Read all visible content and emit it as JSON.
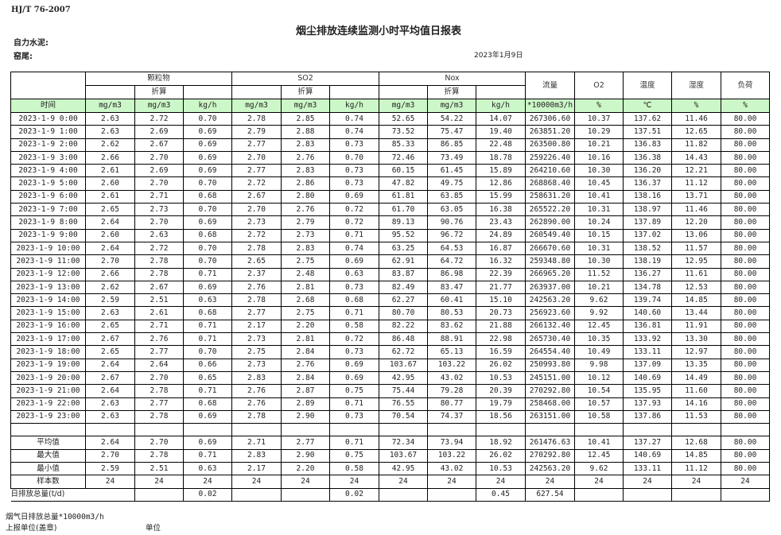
{
  "header": {
    "standard": "HJ/T  76-2007",
    "title": "烟尘排放连续监测小时平均值日报表",
    "company": "自力水泥:",
    "kiln": "窑尾:",
    "date": "2023年1月9日"
  },
  "groups": {
    "particulate": "颗粒物",
    "so2": "SO2",
    "nox": "Nox",
    "converted": "折算",
    "flow": "流量",
    "o2": "O2",
    "temperature": "温度",
    "humidity": "湿度",
    "load": "负荷"
  },
  "units": [
    "时间",
    "mg/m3",
    "mg/m3",
    "kg/h",
    "mg/m3",
    "mg/m3",
    "kg/h",
    "mg/m3",
    "mg/m3",
    "kg/h",
    "*10000m3/h",
    "%",
    "℃",
    "%",
    "%"
  ],
  "rows": [
    [
      "2023-1-9 0:00",
      "2.63",
      "2.72",
      "0.70",
      "2.78",
      "2.85",
      "0.74",
      "52.65",
      "54.22",
      "14.07",
      "267306.60",
      "10.37",
      "137.62",
      "11.46",
      "80.00"
    ],
    [
      "2023-1-9 1:00",
      "2.63",
      "2.69",
      "0.69",
      "2.79",
      "2.88",
      "0.74",
      "73.52",
      "75.47",
      "19.40",
      "263851.20",
      "10.29",
      "137.51",
      "12.65",
      "80.00"
    ],
    [
      "2023-1-9 2:00",
      "2.62",
      "2.67",
      "0.69",
      "2.77",
      "2.83",
      "0.73",
      "85.33",
      "86.85",
      "22.48",
      "263500.80",
      "10.21",
      "136.83",
      "11.82",
      "80.00"
    ],
    [
      "2023-1-9 3:00",
      "2.66",
      "2.70",
      "0.69",
      "2.70",
      "2.76",
      "0.70",
      "72.46",
      "73.49",
      "18.78",
      "259226.40",
      "10.16",
      "136.38",
      "14.43",
      "80.00"
    ],
    [
      "2023-1-9 4:00",
      "2.61",
      "2.69",
      "0.69",
      "2.77",
      "2.83",
      "0.73",
      "60.15",
      "61.45",
      "15.89",
      "264210.60",
      "10.30",
      "136.20",
      "12.21",
      "80.00"
    ],
    [
      "2023-1-9 5:00",
      "2.60",
      "2.70",
      "0.70",
      "2.72",
      "2.86",
      "0.73",
      "47.82",
      "49.75",
      "12.86",
      "268868.40",
      "10.45",
      "136.37",
      "11.12",
      "80.00"
    ],
    [
      "2023-1-9 6:00",
      "2.61",
      "2.71",
      "0.68",
      "2.67",
      "2.80",
      "0.69",
      "61.81",
      "63.85",
      "15.99",
      "258631.20",
      "10.41",
      "138.16",
      "13.71",
      "80.00"
    ],
    [
      "2023-1-9 7:00",
      "2.65",
      "2.73",
      "0.70",
      "2.70",
      "2.76",
      "0.72",
      "61.70",
      "63.05",
      "16.38",
      "265522.20",
      "10.31",
      "138.97",
      "11.46",
      "80.00"
    ],
    [
      "2023-1-9 8:00",
      "2.64",
      "2.70",
      "0.69",
      "2.73",
      "2.79",
      "0.72",
      "89.13",
      "90.76",
      "23.43",
      "262890.00",
      "10.24",
      "137.89",
      "12.20",
      "80.00"
    ],
    [
      "2023-1-9 9:00",
      "2.60",
      "2.63",
      "0.68",
      "2.72",
      "2.73",
      "0.71",
      "95.52",
      "96.72",
      "24.89",
      "260549.40",
      "10.15",
      "137.02",
      "13.06",
      "80.00"
    ],
    [
      "2023-1-9 10:00",
      "2.64",
      "2.72",
      "0.70",
      "2.78",
      "2.83",
      "0.74",
      "63.25",
      "64.53",
      "16.87",
      "266670.60",
      "10.31",
      "138.52",
      "11.57",
      "80.00"
    ],
    [
      "2023-1-9 11:00",
      "2.70",
      "2.78",
      "0.70",
      "2.65",
      "2.75",
      "0.69",
      "62.91",
      "64.72",
      "16.32",
      "259348.80",
      "10.30",
      "138.19",
      "12.95",
      "80.00"
    ],
    [
      "2023-1-9 12:00",
      "2.66",
      "2.78",
      "0.71",
      "2.37",
      "2.48",
      "0.63",
      "83.87",
      "86.98",
      "22.39",
      "266965.20",
      "11.52",
      "136.27",
      "11.61",
      "80.00"
    ],
    [
      "2023-1-9 13:00",
      "2.62",
      "2.67",
      "0.69",
      "2.76",
      "2.81",
      "0.73",
      "82.49",
      "83.47",
      "21.77",
      "263937.00",
      "10.21",
      "134.78",
      "12.53",
      "80.00"
    ],
    [
      "2023-1-9 14:00",
      "2.59",
      "2.51",
      "0.63",
      "2.78",
      "2.68",
      "0.68",
      "62.27",
      "60.41",
      "15.10",
      "242563.20",
      "9.62",
      "139.74",
      "14.85",
      "80.00"
    ],
    [
      "2023-1-9 15:00",
      "2.63",
      "2.61",
      "0.68",
      "2.77",
      "2.75",
      "0.71",
      "80.70",
      "80.53",
      "20.73",
      "256923.60",
      "9.92",
      "140.60",
      "13.44",
      "80.00"
    ],
    [
      "2023-1-9 16:00",
      "2.65",
      "2.71",
      "0.71",
      "2.17",
      "2.20",
      "0.58",
      "82.22",
      "83.62",
      "21.88",
      "266132.40",
      "12.45",
      "136.81",
      "11.91",
      "80.00"
    ],
    [
      "2023-1-9 17:00",
      "2.67",
      "2.76",
      "0.71",
      "2.73",
      "2.81",
      "0.72",
      "86.48",
      "88.91",
      "22.98",
      "265730.40",
      "10.35",
      "133.92",
      "13.30",
      "80.00"
    ],
    [
      "2023-1-9 18:00",
      "2.65",
      "2.77",
      "0.70",
      "2.75",
      "2.84",
      "0.73",
      "62.72",
      "65.13",
      "16.59",
      "264554.40",
      "10.49",
      "133.11",
      "12.97",
      "80.00"
    ],
    [
      "2023-1-9 19:00",
      "2.64",
      "2.64",
      "0.66",
      "2.73",
      "2.76",
      "0.69",
      "103.67",
      "103.22",
      "26.02",
      "250993.80",
      "9.98",
      "137.09",
      "13.35",
      "80.00"
    ],
    [
      "2023-1-9 20:00",
      "2.67",
      "2.70",
      "0.65",
      "2.83",
      "2.84",
      "0.69",
      "42.95",
      "43.02",
      "10.53",
      "245151.00",
      "10.12",
      "140.69",
      "14.49",
      "80.00"
    ],
    [
      "2023-1-9 21:00",
      "2.64",
      "2.78",
      "0.71",
      "2.76",
      "2.87",
      "0.75",
      "75.44",
      "79.28",
      "20.39",
      "270292.80",
      "10.54",
      "135.95",
      "11.60",
      "80.00"
    ],
    [
      "2023-1-9 22:00",
      "2.63",
      "2.77",
      "0.68",
      "2.76",
      "2.89",
      "0.71",
      "76.55",
      "80.77",
      "19.79",
      "258468.00",
      "10.57",
      "137.93",
      "14.16",
      "80.00"
    ],
    [
      "2023-1-9 23:00",
      "2.63",
      "2.78",
      "0.69",
      "2.78",
      "2.90",
      "0.73",
      "70.54",
      "74.37",
      "18.56",
      "263151.00",
      "10.58",
      "137.86",
      "11.53",
      "80.00"
    ]
  ],
  "summary": [
    [
      "平均值",
      "2.64",
      "2.70",
      "0.69",
      "2.71",
      "2.77",
      "0.71",
      "72.34",
      "73.94",
      "18.92",
      "261476.63",
      "10.41",
      "137.27",
      "12.68",
      "80.00"
    ],
    [
      "最大值",
      "2.70",
      "2.78",
      "0.71",
      "2.83",
      "2.90",
      "0.75",
      "103.67",
      "103.22",
      "26.02",
      "270292.80",
      "12.45",
      "140.69",
      "14.85",
      "80.00"
    ],
    [
      "最小值",
      "2.59",
      "2.51",
      "0.63",
      "2.17",
      "2.20",
      "0.58",
      "42.95",
      "43.02",
      "10.53",
      "242563.20",
      "9.62",
      "133.11",
      "11.12",
      "80.00"
    ],
    [
      "样本数",
      "24",
      "24",
      "24",
      "24",
      "24",
      "24",
      "24",
      "24",
      "24",
      "24",
      "24",
      "24",
      "24",
      "24"
    ]
  ],
  "total": {
    "label": "日排放总量(t/d)",
    "values": [
      "",
      "0.02",
      "",
      "",
      "0.02",
      "",
      "",
      "0.45",
      "627.54",
      "",
      "",
      "",
      ""
    ]
  },
  "footer": {
    "flue_gas": "烟气日排放总量*10000m3/h",
    "reporter": "上报单位(盖章)",
    "unit": "单位"
  }
}
